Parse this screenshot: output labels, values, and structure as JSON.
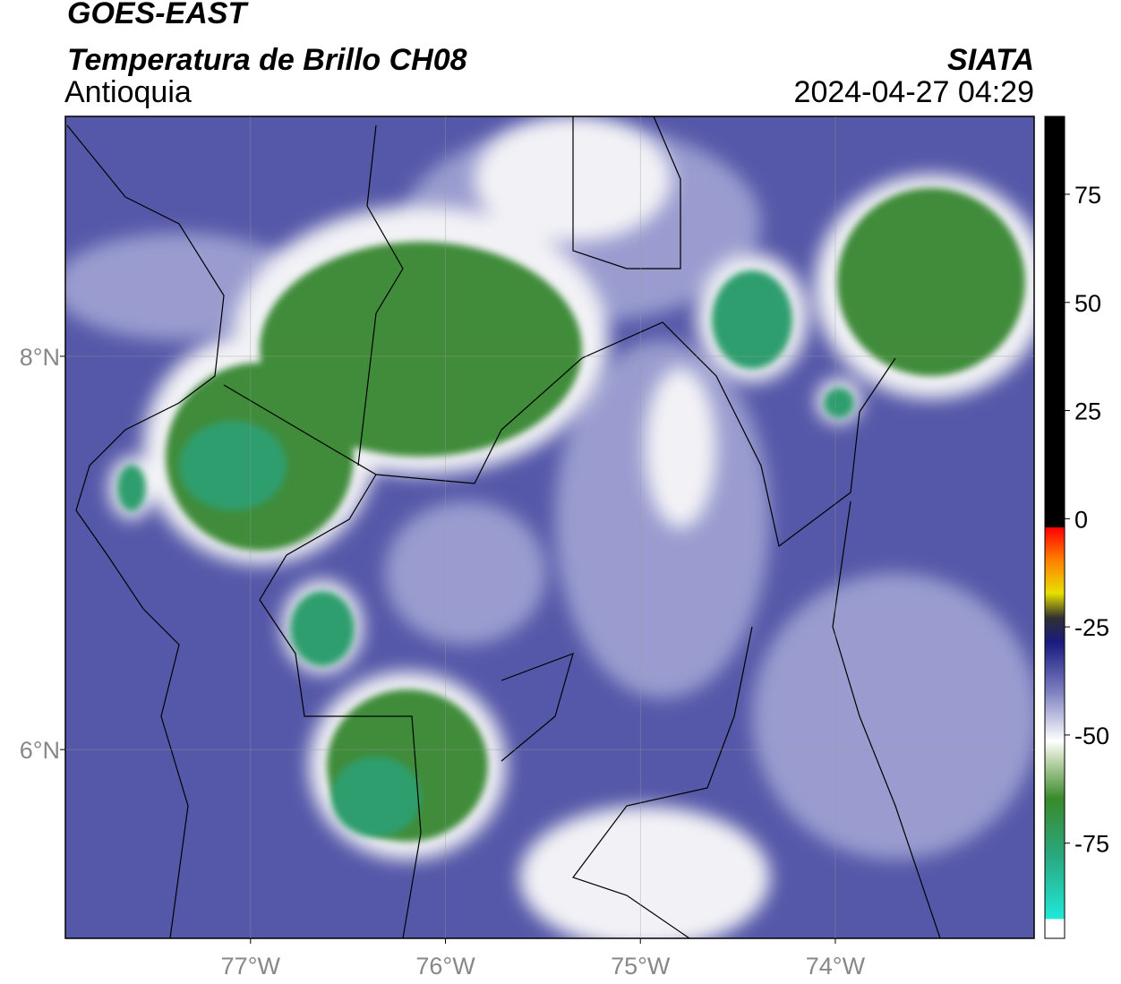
{
  "header": {
    "title1": "GOES-EAST",
    "title2": "Temperatura de Brillo CH08",
    "region": "Antioquia",
    "source": "SIATA",
    "datetime": "2024-04-27 04:29"
  },
  "map": {
    "xlim": [
      -77.95,
      -72.98
    ],
    "ylim": [
      5.04,
      9.22
    ],
    "xticks": [
      {
        "value": -77,
        "label": "77°W"
      },
      {
        "value": -76,
        "label": "76°W"
      },
      {
        "value": -75,
        "label": "75°W"
      },
      {
        "value": -74,
        "label": "74°W"
      }
    ],
    "yticks": [
      {
        "value": 8,
        "label": "8°N"
      },
      {
        "value": 6,
        "label": "6°N"
      }
    ],
    "grid": true
  },
  "colorbar": {
    "lim": [
      -97,
      93
    ],
    "ticks": [
      75,
      50,
      25,
      0,
      -25,
      -50,
      -75
    ]
  }
}
